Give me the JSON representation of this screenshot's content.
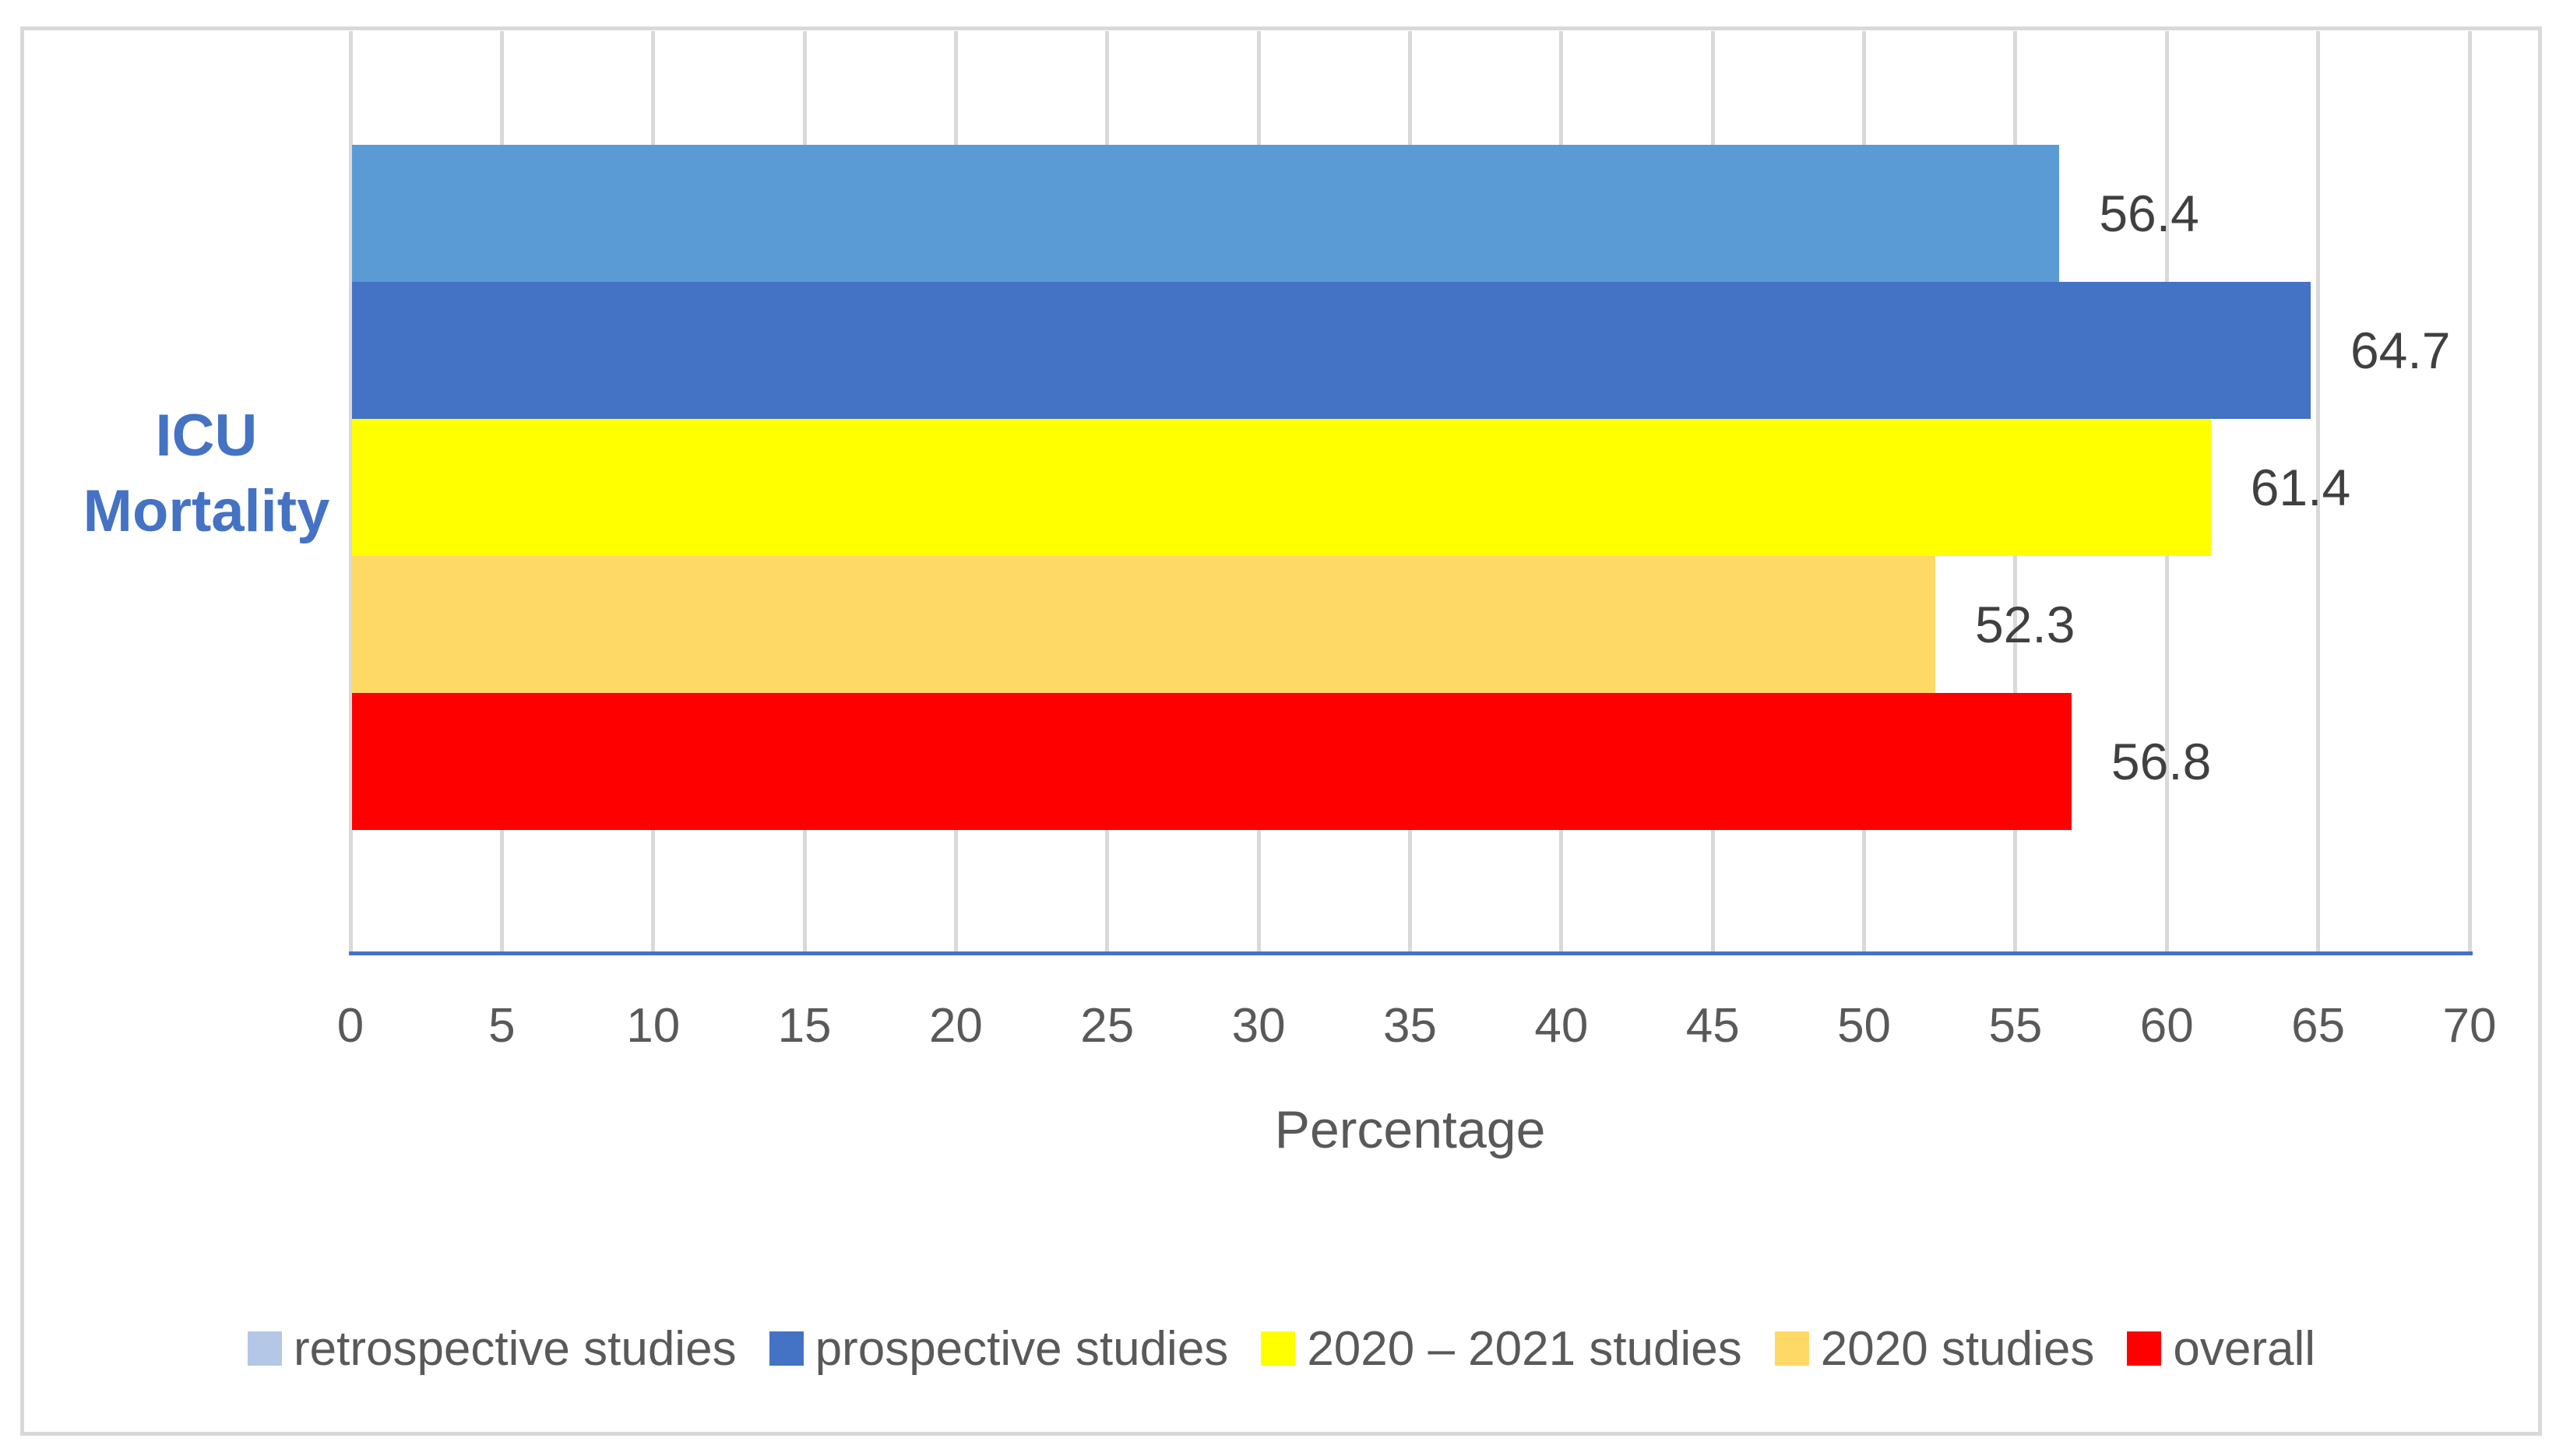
{
  "figure": {
    "category_label_line1": "ICU",
    "category_label_line2": "Mortality"
  },
  "chart_data": {
    "type": "bar",
    "orientation": "horizontal",
    "category": "ICU Mortality",
    "series": [
      {
        "name": "retrospective studies",
        "value": 56.4,
        "bar_color": "#5B9BD5",
        "legend_color": "#B4C7E7"
      },
      {
        "name": "prospective studies",
        "value": 64.7,
        "bar_color": "#4472C4",
        "legend_color": "#4472C4"
      },
      {
        "name": "2020 – 2021 studies",
        "value": 61.4,
        "bar_color": "#FFFF00",
        "legend_color": "#FFFF00"
      },
      {
        "name": "2020 studies",
        "value": 52.3,
        "bar_color": "#FFD966",
        "legend_color": "#FFD966"
      },
      {
        "name": "overall",
        "value": 56.8,
        "bar_color": "#FF0000",
        "legend_color": "#FF0000"
      }
    ],
    "data_labels": [
      "56.4",
      "64.7",
      "61.4",
      "52.3",
      "56.8"
    ],
    "xlabel": "Percentage",
    "xlim": [
      0,
      70
    ],
    "xticks": [
      0,
      5,
      10,
      15,
      20,
      25,
      30,
      35,
      40,
      45,
      50,
      55,
      60,
      65,
      70
    ],
    "grid": true,
    "legend_position": "bottom"
  },
  "colors": {
    "background": "#FFFFFF",
    "figure_border": "#D9D9D9",
    "gridline": "#D9D9D9",
    "axis_line": "#4472C4",
    "tick_text": "#595959",
    "data_label_text": "#404040",
    "category_label_text": "#4472C4"
  }
}
